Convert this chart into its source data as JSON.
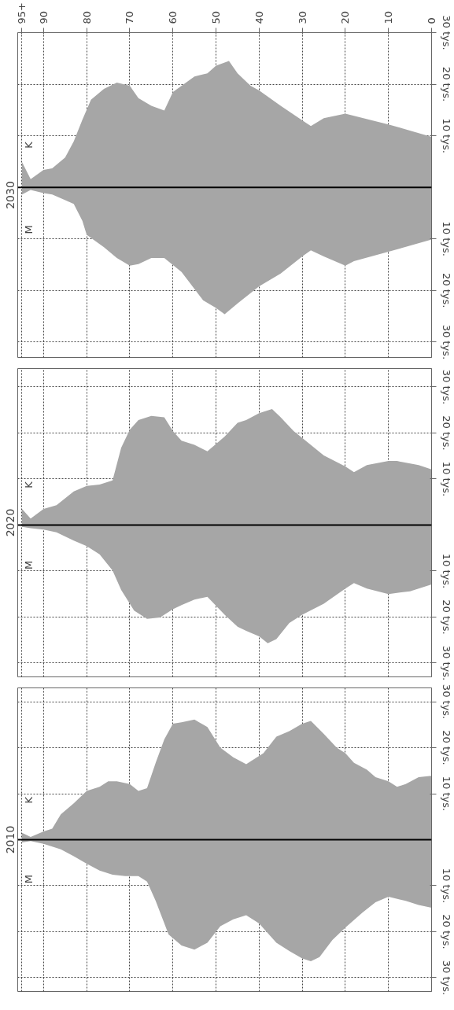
{
  "chart_data": [
    {
      "type": "area",
      "title": "2030",
      "xlim": [
        96,
        0
      ],
      "ylim": [
        -33,
        30
      ],
      "xticks": [
        {
          "value": 95,
          "label": "95+"
        },
        90,
        80,
        70,
        60,
        50,
        40,
        30,
        20,
        10,
        0
      ],
      "yticks": [
        {
          "value": -30,
          "label": "30 tys."
        },
        {
          "value": -20,
          "label": "20 tys."
        },
        {
          "value": -10,
          "label": "10 tys."
        },
        {
          "value": 10,
          "label": "10 tys."
        },
        {
          "value": 20,
          "label": "20 tys."
        },
        {
          "value": 30,
          "label": "30 tys."
        }
      ],
      "grid": true,
      "ref_lines": [
        {
          "axis": "y",
          "value": 0,
          "color": "#000000"
        }
      ],
      "series": [
        {
          "name": "M",
          "color": "#a6a6a6",
          "x": [
            0,
            10,
            18,
            20,
            25,
            28,
            30,
            35,
            40,
            45,
            48,
            50,
            53,
            58,
            62,
            65,
            68,
            70,
            73,
            76,
            80,
            81,
            83,
            88,
            90,
            93,
            95
          ],
          "values": [
            -10.1,
            -12.5,
            -14.3,
            -15.2,
            -13.4,
            -12.2,
            -13.4,
            -16.7,
            -19.2,
            -22.5,
            -24.6,
            -23.4,
            -21.9,
            -16.4,
            -13.7,
            -13.7,
            -14.9,
            -15.2,
            -13.7,
            -11.6,
            -9.2,
            -6.5,
            -3.2,
            -1.4,
            -1.1,
            -0.5,
            -1.4
          ]
        },
        {
          "name": "K",
          "color": "#a6a6a6",
          "x": [
            0,
            10,
            20,
            25,
            28,
            30,
            35,
            40,
            42,
            45,
            47,
            50,
            52,
            55,
            60,
            62,
            65,
            68,
            70,
            73,
            76,
            79,
            81,
            83,
            85,
            88,
            90,
            93,
            95
          ],
          "values": [
            9.8,
            12.2,
            14.3,
            13.4,
            11.9,
            13,
            15.8,
            18.8,
            19.7,
            22.1,
            24.5,
            23.6,
            22.1,
            21.5,
            18.5,
            14.9,
            15.8,
            17.3,
            19.7,
            20.3,
            19.1,
            17,
            13.1,
            8.9,
            5.8,
            3.7,
            3.4,
            1.6,
            4.9
          ]
        }
      ]
    },
    {
      "type": "area",
      "title": "2020",
      "xlim": [
        96,
        0
      ],
      "ylim": [
        -33,
        34
      ],
      "tick_labels": "y",
      "xticks": [
        95,
        90,
        80,
        70,
        60,
        50,
        40,
        30,
        20,
        10,
        0
      ],
      "yticks": [
        {
          "value": -30,
          "label": "30 tys."
        },
        {
          "value": -20,
          "label": "20 tys."
        },
        {
          "value": -10,
          "label": "10 tys."
        },
        {
          "value": 10,
          "label": "10 tys."
        },
        {
          "value": 20,
          "label": "20 tys."
        },
        {
          "value": 30,
          "label": "30 tys."
        }
      ],
      "grid": true,
      "ref_lines": [
        {
          "axis": "y",
          "value": 0,
          "color": "#000000"
        }
      ],
      "series": [
        {
          "name": "M",
          "color": "#a6a6a6",
          "x": [
            0,
            5,
            10,
            15,
            18,
            20,
            25,
            30,
            33,
            36,
            38,
            40,
            43,
            45,
            48,
            52,
            55,
            58,
            60,
            63,
            66,
            69,
            72,
            74,
            77,
            80,
            83,
            87,
            90,
            93,
            95
          ],
          "values": [
            -12.9,
            -14.4,
            -15,
            -13.8,
            -12.6,
            -13.8,
            -17.1,
            -19.5,
            -21.3,
            -24.8,
            -25.7,
            -24.2,
            -23,
            -22.1,
            -19.5,
            -15.6,
            -16.2,
            -17.4,
            -18.3,
            -20.1,
            -20.4,
            -18.6,
            -14.1,
            -9.9,
            -6.4,
            -4.6,
            -3.4,
            -1.6,
            -1,
            -0.7,
            -0.4
          ]
        },
        {
          "name": "K",
          "color": "#a6a6a6",
          "x": [
            0,
            3,
            8,
            10,
            15,
            18,
            20,
            25,
            30,
            32,
            35,
            37,
            40,
            43,
            45,
            48,
            52,
            55,
            58,
            60,
            62,
            65,
            68,
            70,
            72,
            74,
            77,
            80,
            83,
            87,
            90,
            93,
            95
          ],
          "values": [
            12.1,
            13,
            13.9,
            13.9,
            13,
            11.5,
            12.7,
            15.1,
            18.9,
            20.4,
            23.4,
            25.2,
            24.3,
            22.8,
            22.2,
            19.2,
            16,
            17.4,
            18.3,
            20.4,
            23.4,
            23.7,
            22.8,
            20.7,
            16.8,
            9.7,
            8.8,
            8.5,
            7.3,
            4.3,
            3.5,
            1.4,
            3.5
          ]
        }
      ]
    },
    {
      "type": "area",
      "title": "2010",
      "xlim": [
        96,
        0
      ],
      "ylim": [
        -33,
        33
      ],
      "tick_labels": "y",
      "xticks": [
        95,
        90,
        80,
        70,
        60,
        50,
        40,
        30,
        20,
        10,
        0
      ],
      "yticks": [
        {
          "value": -30,
          "label": "30 tys."
        },
        {
          "value": -20,
          "label": "20 tys."
        },
        {
          "value": -10,
          "label": "10 tys."
        },
        {
          "value": 10,
          "label": "10 tys."
        },
        {
          "value": 20,
          "label": "20 tys."
        },
        {
          "value": 30,
          "label": "30 tys."
        }
      ],
      "grid": true,
      "ref_lines": [
        {
          "axis": "y",
          "value": 0,
          "color": "#000000"
        }
      ],
      "series": [
        {
          "name": "M",
          "color": "#a6a6a6",
          "x": [
            0,
            3,
            6,
            10,
            13,
            16,
            20,
            23,
            26,
            28,
            30,
            33,
            36,
            40,
            43,
            46,
            49,
            52,
            55,
            58,
            61,
            64,
            66,
            68,
            71,
            74,
            77,
            80,
            83,
            86,
            90,
            93,
            95
          ],
          "values": [
            -14.8,
            -14.2,
            -13.3,
            -12.4,
            -13.6,
            -15.8,
            -19.1,
            -21.8,
            -25.5,
            -26.4,
            -25.8,
            -24.2,
            -22.4,
            -18.2,
            -16.4,
            -17.3,
            -18.8,
            -22.4,
            -23.9,
            -23,
            -20.6,
            -13.3,
            -9.1,
            -7.9,
            -7.9,
            -7.6,
            -6.7,
            -5.2,
            -3.6,
            -2.1,
            -0.9,
            -0.3,
            -0.6
          ]
        },
        {
          "name": "K",
          "color": "#a6a6a6",
          "x": [
            0,
            3,
            6,
            8,
            10,
            13,
            15,
            18,
            20,
            22,
            25,
            28,
            30,
            33,
            36,
            39,
            43,
            46,
            49,
            52,
            55,
            58,
            60,
            62,
            64,
            66,
            68,
            70,
            73,
            75,
            77,
            80,
            83,
            86,
            88,
            90,
            93,
            95
          ],
          "values": [
            13.9,
            13.6,
            12.1,
            11.5,
            12.7,
            13.6,
            15.2,
            16.7,
            18.8,
            20,
            23,
            25.8,
            25.2,
            23.6,
            22.4,
            18.8,
            16.4,
            17.9,
            20,
            24.5,
            26.1,
            25.5,
            25.2,
            21.8,
            16.7,
            11.2,
            10.6,
            12.1,
            12.7,
            12.7,
            11.5,
            10.6,
            7.9,
            5.5,
            2.4,
            1.8,
            0.6,
            1.5
          ]
        }
      ]
    }
  ]
}
